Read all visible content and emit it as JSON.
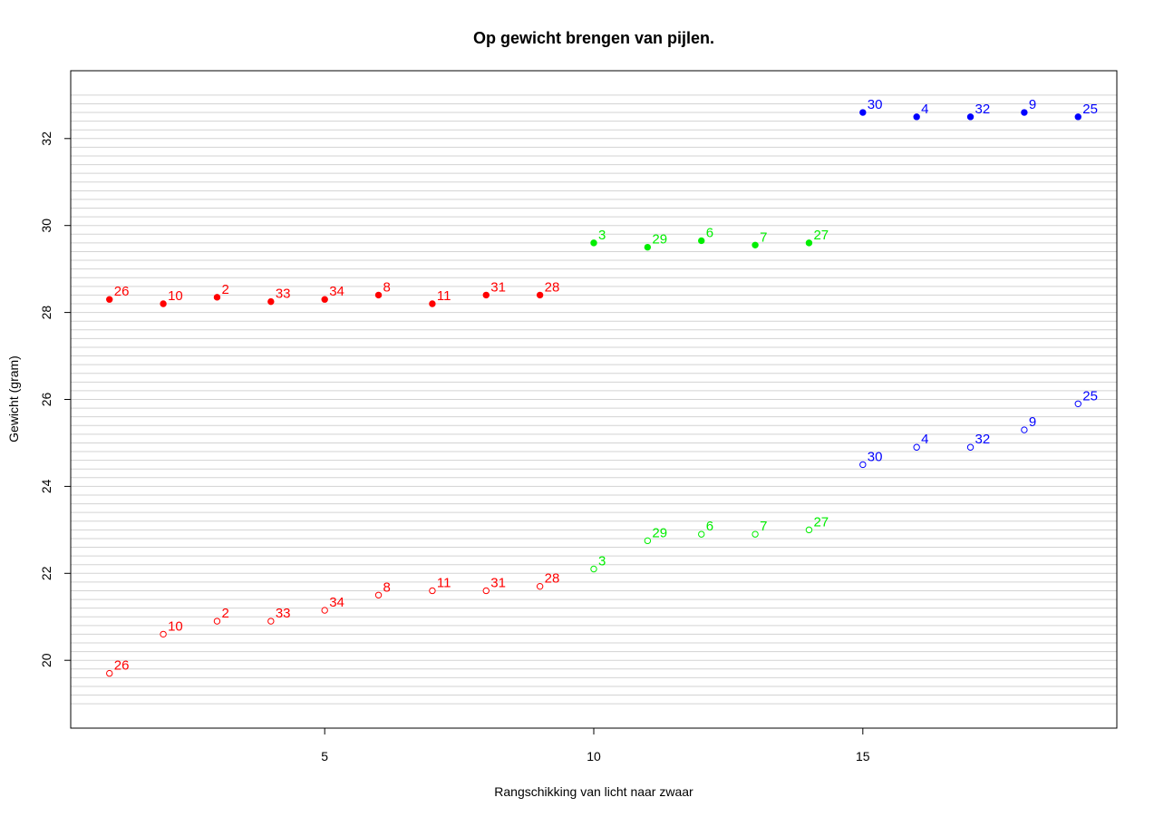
{
  "chart_data": {
    "type": "scatter",
    "title": "Op gewicht brengen van pijlen.",
    "x_label": "Rangschikking van licht naar zwaar",
    "y_label": "Gewicht (gram)",
    "xlim": [
      0.28,
      19.72
    ],
    "ylim": [
      18.44,
      33.56
    ],
    "xticks": [
      5,
      10,
      15
    ],
    "yticks": [
      20,
      22,
      24,
      26,
      28,
      30,
      32
    ],
    "grid_lines": [
      19,
      19.2,
      19.4,
      19.6,
      19.8,
      20,
      20.2,
      20.4,
      20.6,
      20.8,
      21,
      21.2,
      21.4,
      21.6,
      21.8,
      22,
      22.2,
      22.4,
      22.6,
      22.8,
      23,
      23.2,
      23.4,
      23.6,
      23.8,
      24,
      24.2,
      24.4,
      24.6,
      24.8,
      25,
      25.2,
      25.4,
      25.6,
      25.8,
      26,
      26.2,
      26.4,
      26.6,
      26.8,
      27,
      27.2,
      27.4,
      27.6,
      27.8,
      28,
      28.2,
      28.4,
      28.6,
      28.8,
      29,
      29.2,
      29.4,
      29.6,
      29.8,
      30,
      30.2,
      30.4,
      30.6,
      30.8,
      31,
      31.2,
      31.4,
      31.6,
      31.8,
      32,
      32.2,
      32.4,
      32.6,
      32.8,
      33
    ],
    "grid_color": "#d3d3d3",
    "series": [
      {
        "color": "#ff0000",
        "filled": true,
        "x": [
          1,
          2,
          3,
          4,
          5,
          6,
          7,
          8,
          9
        ],
        "values": [
          28.3,
          28.2,
          28.35,
          28.25,
          28.3,
          28.4,
          28.2,
          28.4,
          28.4
        ],
        "labels": [
          "26",
          "10",
          "2",
          "33",
          "34",
          "8",
          "11",
          "31",
          "28"
        ]
      },
      {
        "color": "#00ee00",
        "filled": true,
        "x": [
          10,
          11,
          12,
          13,
          14
        ],
        "values": [
          29.6,
          29.5,
          29.65,
          29.55,
          29.6
        ],
        "labels": [
          "3",
          "29",
          "6",
          "7",
          "27"
        ]
      },
      {
        "color": "#0000ff",
        "filled": true,
        "x": [
          15,
          16,
          17,
          18,
          19
        ],
        "values": [
          32.6,
          32.5,
          32.5,
          32.6,
          32.5
        ],
        "labels": [
          "30",
          "4",
          "32",
          "9",
          "25"
        ]
      },
      {
        "color": "#ff0000",
        "filled": false,
        "x": [
          1,
          2,
          3,
          4,
          5,
          6,
          7,
          8,
          9
        ],
        "values": [
          19.7,
          20.6,
          20.9,
          20.9,
          21.15,
          21.5,
          21.6,
          21.6,
          21.7
        ],
        "labels": [
          "26",
          "10",
          "2",
          "33",
          "34",
          "8",
          "11",
          "31",
          "28"
        ]
      },
      {
        "color": "#00ee00",
        "filled": false,
        "x": [
          10,
          11,
          12,
          13,
          14
        ],
        "values": [
          22.1,
          22.75,
          22.9,
          22.9,
          23.0
        ],
        "labels": [
          "3",
          "29",
          "6",
          "7",
          "27"
        ]
      },
      {
        "color": "#0000ff",
        "filled": false,
        "x": [
          15,
          16,
          17,
          18,
          19
        ],
        "values": [
          24.5,
          24.9,
          24.9,
          25.3,
          25.9
        ],
        "labels": [
          "30",
          "4",
          "32",
          "9",
          "25"
        ]
      }
    ]
  }
}
